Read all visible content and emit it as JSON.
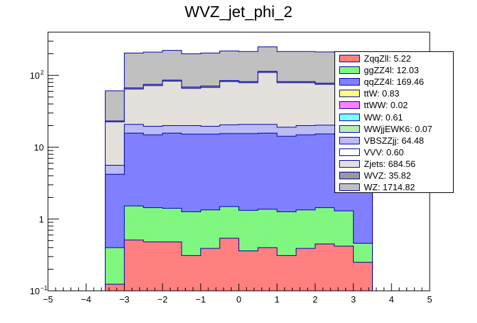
{
  "chart_data": {
    "type": "bar",
    "subtype": "stacked-histogram",
    "title": "WVZ_jet_phi_2",
    "xlabel": "",
    "ylabel": "",
    "xlim": [
      -5,
      5
    ],
    "ylim": [
      0.1,
      400
    ],
    "yscale": "log",
    "grid": false,
    "legend_position": "top-right",
    "x_ticks": [
      "-5",
      "-4",
      "-3",
      "-2",
      "-1",
      "0",
      "1",
      "2",
      "3",
      "4",
      "5"
    ],
    "y_ticks": [
      {
        "base": "10",
        "exp": "-1",
        "value": 0.1
      },
      {
        "base": "1",
        "exp": "",
        "value": 1
      },
      {
        "base": "10",
        "exp": "",
        "value": 10
      },
      {
        "base": "10",
        "exp": "2",
        "value": 100
      }
    ],
    "bin_edges": [
      -3.5,
      -3,
      -2.5,
      -2,
      -1.5,
      -1,
      -0.5,
      0,
      0.5,
      1,
      1.5,
      2,
      2.5,
      3,
      3.5
    ],
    "values_are_cumulative_stack_tops": true,
    "series": [
      {
        "name": "ZqqZll",
        "color": "#ff0000",
        "values": [
          0.124,
          0.51,
          0.48,
          0.48,
          0.31,
          0.39,
          0.54,
          0.36,
          0.4,
          0.31,
          0.39,
          0.45,
          0.42,
          0.25
        ]
      },
      {
        "name": "ggZZ4l",
        "color": "#00ee00",
        "values": [
          0.4,
          1.52,
          1.44,
          1.41,
          1.26,
          1.34,
          1.49,
          1.32,
          1.37,
          1.26,
          1.34,
          1.44,
          1.3,
          0.46
        ]
      },
      {
        "name": "qqZZ4l",
        "color": "#0000ff",
        "values": [
          4.2,
          15.7,
          14.9,
          15.7,
          15.2,
          15.2,
          15.5,
          15.5,
          15.7,
          14.2,
          14.9,
          15.3,
          15.0,
          4.5
        ]
      },
      {
        "name": "VBSZZjj",
        "color": "#7777ee",
        "values": [
          5.6,
          20.8,
          19.6,
          20.0,
          20.0,
          19.6,
          20.5,
          20.8,
          20.8,
          19.0,
          20.0,
          20.3,
          20.0,
          6.0
        ]
      },
      {
        "name": "Zjets",
        "color": "#c8c0b8",
        "values": [
          22.6,
          64.5,
          72,
          83,
          66,
          68,
          82,
          79,
          110,
          79,
          79,
          75,
          75,
          24
        ]
      },
      {
        "name": "WVZ",
        "color": "#333333",
        "values": [
          23.2,
          67,
          75,
          86,
          69,
          71,
          85,
          82,
          114,
          82,
          82,
          78,
          78,
          25
        ]
      },
      {
        "name": "WZ",
        "color": "#808080",
        "values": [
          61,
          205,
          211,
          223,
          200,
          205,
          219,
          215,
          250,
          215,
          215,
          212,
          210,
          65
        ]
      }
    ],
    "legend": [
      {
        "label": "ZqqZll: 5.22",
        "color": "#ff0000"
      },
      {
        "label": "ggZZ4l: 12.03",
        "color": "#00ee00"
      },
      {
        "label": "qqZZ4l: 169.46",
        "color": "#0000ff"
      },
      {
        "label": "ttW: 0.83",
        "color": "#ffff00"
      },
      {
        "label": "ttWW: 0.02",
        "color": "#ff00ff"
      },
      {
        "label": "WW: 0.61",
        "color": "#00ffff"
      },
      {
        "label": "WWjjEWK6: 0.07",
        "color": "#66dd66"
      },
      {
        "label": "VBSZZjj: 64.48",
        "color": "#7777ee"
      },
      {
        "label": "VVV: 0.60",
        "color": "#ffffff"
      },
      {
        "label": "Zjets: 684.56",
        "color": "#c8c0b8"
      },
      {
        "label": "WVZ: 35.82",
        "color": "#333333"
      },
      {
        "label": "WZ: 1714.82",
        "color": "#808080"
      }
    ]
  }
}
